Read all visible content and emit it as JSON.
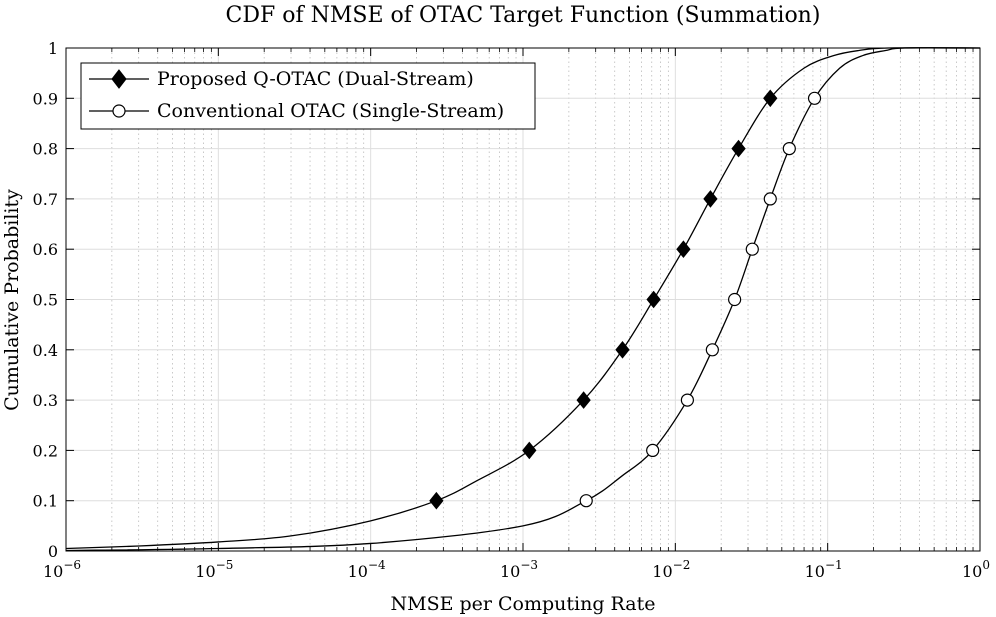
{
  "chart_data": {
    "type": "line",
    "title": "CDF of NMSE of OTAC Target Function (Summation)",
    "xlabel": "NMSE per Computing Rate",
    "ylabel": "Cumulative Probability",
    "xscale": "log",
    "xlim": [
      1e-06,
      1
    ],
    "ylim": [
      0,
      1
    ],
    "grid": "on",
    "legend_position": "top-left",
    "x_ticks": [
      {
        "value": 1e-06,
        "base": "10",
        "exp": "−6"
      },
      {
        "value": 1e-05,
        "base": "10",
        "exp": "−5"
      },
      {
        "value": 0.0001,
        "base": "10",
        "exp": "−4"
      },
      {
        "value": 0.001,
        "base": "10",
        "exp": "−3"
      },
      {
        "value": 0.01,
        "base": "10",
        "exp": "−2"
      },
      {
        "value": 0.1,
        "base": "10",
        "exp": "−1"
      },
      {
        "value": 1,
        "base": "10",
        "exp": "0"
      }
    ],
    "y_ticks": [
      {
        "value": 0,
        "label": "0"
      },
      {
        "value": 0.1,
        "label": "0.1"
      },
      {
        "value": 0.2,
        "label": "0.2"
      },
      {
        "value": 0.3,
        "label": "0.3"
      },
      {
        "value": 0.4,
        "label": "0.4"
      },
      {
        "value": 0.5,
        "label": "0.5"
      },
      {
        "value": 0.6,
        "label": "0.6"
      },
      {
        "value": 0.7,
        "label": "0.7"
      },
      {
        "value": 0.8,
        "label": "0.8"
      },
      {
        "value": 0.9,
        "label": "0.9"
      },
      {
        "value": 1,
        "label": "1"
      }
    ],
    "series": [
      {
        "name": "Proposed Q-OTAC (Dual-Stream)",
        "marker": "diamond-filled",
        "color": "#000000",
        "curve": [
          [
            1e-06,
            0.005
          ],
          [
            3e-06,
            0.01
          ],
          [
            1e-05,
            0.018
          ],
          [
            3e-05,
            0.03
          ],
          [
            0.0001,
            0.06
          ],
          [
            0.00027,
            0.1
          ],
          [
            0.0005,
            0.14
          ],
          [
            0.0011,
            0.2
          ],
          [
            0.0025,
            0.3
          ],
          [
            0.0045,
            0.4
          ],
          [
            0.0072,
            0.5
          ],
          [
            0.0113,
            0.6
          ],
          [
            0.017,
            0.7
          ],
          [
            0.026,
            0.8
          ],
          [
            0.042,
            0.9
          ],
          [
            0.07,
            0.96
          ],
          [
            0.11,
            0.985
          ],
          [
            0.16,
            0.995
          ],
          [
            0.25,
            1.0
          ],
          [
            1,
            1.0
          ]
        ],
        "markers": [
          [
            0.00027,
            0.1
          ],
          [
            0.0011,
            0.2
          ],
          [
            0.0025,
            0.3
          ],
          [
            0.0045,
            0.4
          ],
          [
            0.0072,
            0.5
          ],
          [
            0.0113,
            0.6
          ],
          [
            0.017,
            0.7
          ],
          [
            0.026,
            0.8
          ],
          [
            0.042,
            0.9
          ]
        ]
      },
      {
        "name": "Conventional OTAC (Single-Stream)",
        "marker": "circle-open",
        "color": "#000000",
        "curve": [
          [
            1e-06,
            0.001
          ],
          [
            1e-05,
            0.005
          ],
          [
            0.0001,
            0.015
          ],
          [
            0.001,
            0.05
          ],
          [
            0.0026,
            0.1
          ],
          [
            0.0045,
            0.15
          ],
          [
            0.0071,
            0.2
          ],
          [
            0.012,
            0.3
          ],
          [
            0.0175,
            0.4
          ],
          [
            0.0245,
            0.5
          ],
          [
            0.032,
            0.6
          ],
          [
            0.042,
            0.7
          ],
          [
            0.056,
            0.8
          ],
          [
            0.082,
            0.9
          ],
          [
            0.12,
            0.96
          ],
          [
            0.17,
            0.985
          ],
          [
            0.24,
            0.995
          ],
          [
            0.32,
            1.0
          ],
          [
            1,
            1.0
          ]
        ],
        "markers": [
          [
            0.0026,
            0.1
          ],
          [
            0.0071,
            0.2
          ],
          [
            0.012,
            0.3
          ],
          [
            0.0175,
            0.4
          ],
          [
            0.0245,
            0.5
          ],
          [
            0.032,
            0.6
          ],
          [
            0.042,
            0.7
          ],
          [
            0.056,
            0.8
          ],
          [
            0.082,
            0.9
          ]
        ]
      }
    ]
  }
}
